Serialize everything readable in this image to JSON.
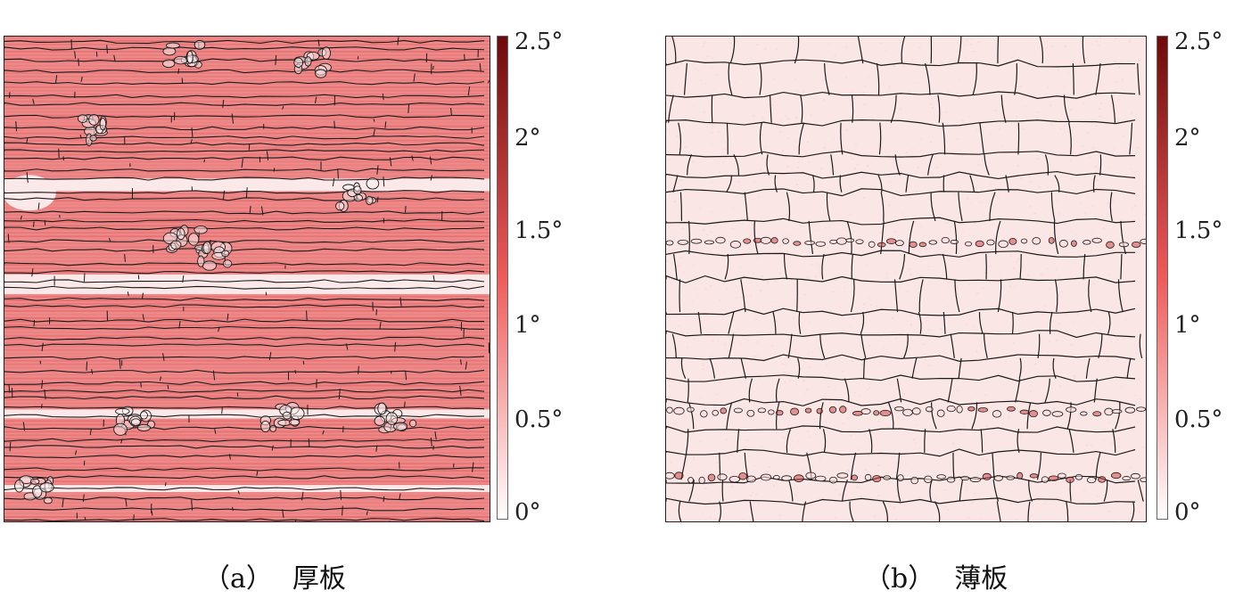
{
  "figure": {
    "colorbar": {
      "ticks": [
        "2.5°",
        "2°",
        "1.5°",
        "1°",
        "0.5°",
        "0°"
      ],
      "min_deg": 0,
      "max_deg": 2.5,
      "color_low": "#ffffff",
      "color_mid": "#f05a5a",
      "color_high": "#6e0a0a"
    },
    "panels": [
      {
        "id": "a",
        "tag": "（a）",
        "label": "厚板",
        "mean_misorientation_deg": 0.9,
        "map_color": "#ee8a8a",
        "stripe_color": "#e06060",
        "boundary_color": "#1a1a1a"
      },
      {
        "id": "b",
        "tag": "（b）",
        "label": "薄板",
        "mean_misorientation_deg": 0.15,
        "map_color": "#fbe6e6",
        "stripe_color": "#f6d4d4",
        "boundary_color": "#1a1a1a"
      }
    ]
  }
}
